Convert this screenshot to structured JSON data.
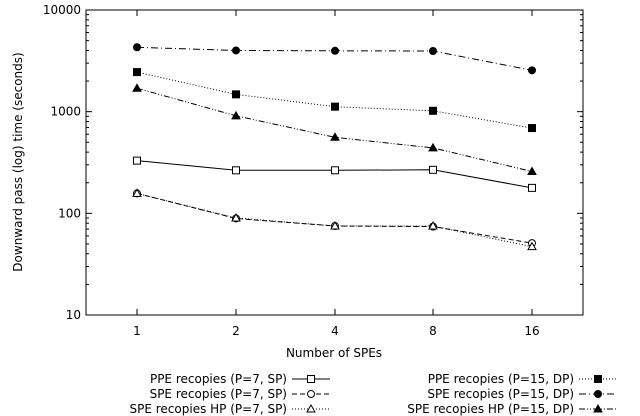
{
  "chart_data": {
    "type": "line",
    "x": [
      "1",
      "2",
      "4",
      "8",
      "16"
    ],
    "xlabel": "Number of SPEs",
    "ylabel": "Downward pass (log) time (seconds)",
    "yscale": "log",
    "ylim": [
      10,
      10000
    ],
    "yticks": [
      "10",
      "100",
      "1000",
      "10000"
    ],
    "grid": false,
    "legend_position": "bottom",
    "series": [
      {
        "name": "PPE recopies (P=7, SP)",
        "values": [
          330,
          265,
          265,
          268,
          178
        ],
        "marker": "open-square",
        "dash": "solid"
      },
      {
        "name": "SPE recopies (P=7, SP)",
        "values": [
          157,
          89,
          75,
          74,
          51
        ],
        "marker": "open-circle",
        "dash": "dashed"
      },
      {
        "name": "SPE recopies HP (P=7, SP)",
        "values": [
          157,
          90,
          75,
          75,
          47
        ],
        "marker": "open-triangle",
        "dash": "dotted"
      },
      {
        "name": "PPE recopies (P=15, DP)",
        "values": [
          2450,
          1480,
          1120,
          1020,
          690
        ],
        "marker": "filled-square",
        "dash": "dotted"
      },
      {
        "name": "SPE recopies (P=15, DP)",
        "values": [
          4300,
          4000,
          3970,
          3950,
          2550
        ],
        "marker": "filled-circle",
        "dash": "dash-dot"
      },
      {
        "name": "SPE recopies HP (P=15, DP)",
        "values": [
          1700,
          910,
          560,
          440,
          258
        ],
        "marker": "filled-triangle",
        "dash": "dash-dot-dot"
      }
    ]
  }
}
